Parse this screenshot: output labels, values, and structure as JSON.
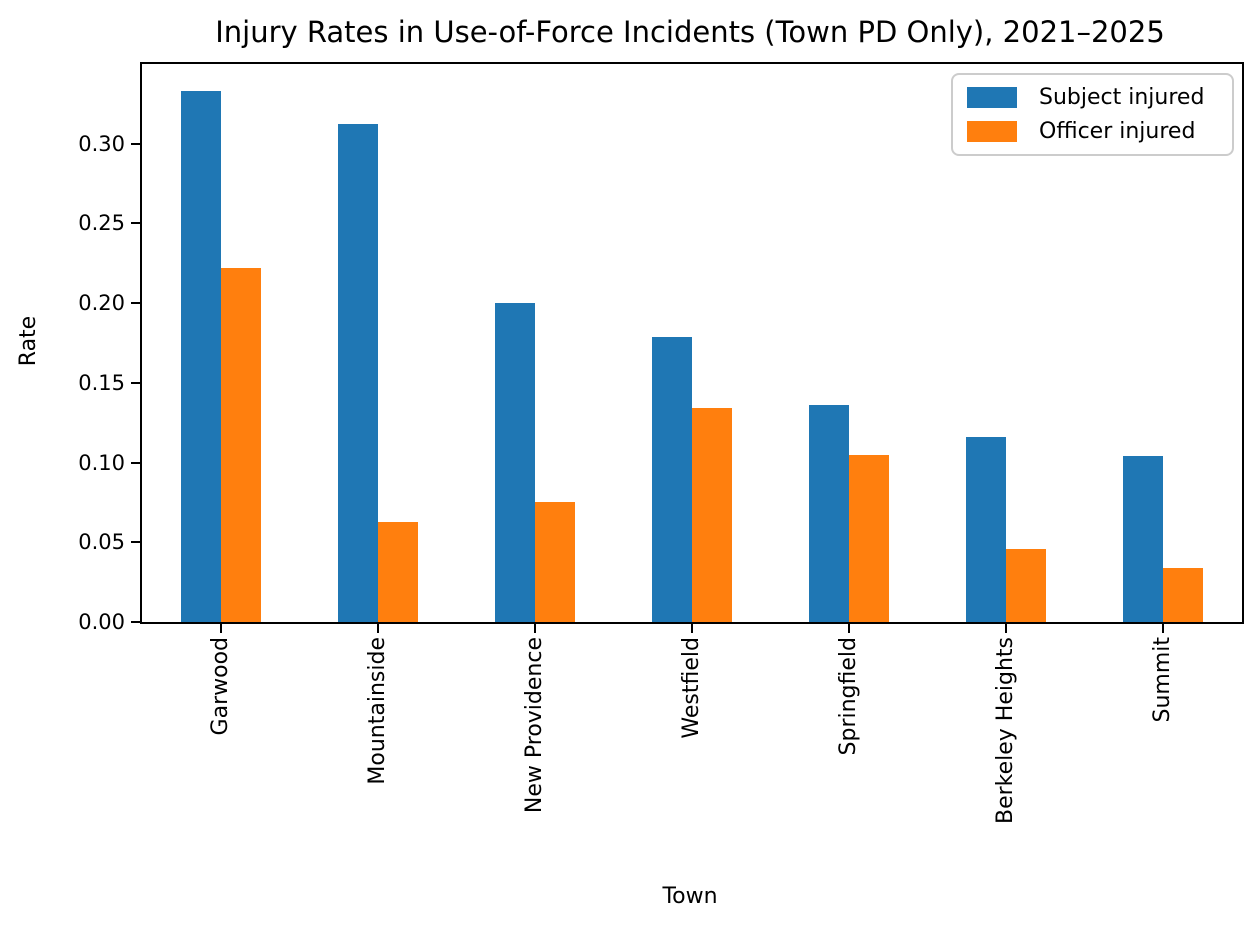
{
  "chart_data": {
    "type": "bar",
    "title": "Injury Rates in Use-of-Force Incidents (Town PD Only), 2021–2025",
    "xlabel": "Town",
    "ylabel": "Rate",
    "categories": [
      "Garwood",
      "Mountainside",
      "New Providence",
      "Westfield",
      "Springfield",
      "Berkeley Heights",
      "Summit"
    ],
    "series": [
      {
        "name": "Subject injured",
        "color": "#1f77b4",
        "values": [
          0.333,
          0.3125,
          0.2,
          0.179,
          0.136,
          0.116,
          0.104
        ]
      },
      {
        "name": "Officer injured",
        "color": "#ff7f0e",
        "values": [
          0.222,
          0.0625,
          0.075,
          0.134,
          0.105,
          0.046,
          0.034
        ]
      }
    ],
    "ylim": [
      0,
      0.35
    ],
    "yticks": [
      "0.00",
      "0.05",
      "0.10",
      "0.15",
      "0.20",
      "0.25",
      "0.30"
    ],
    "grid": false,
    "legend_position": "upper right"
  }
}
